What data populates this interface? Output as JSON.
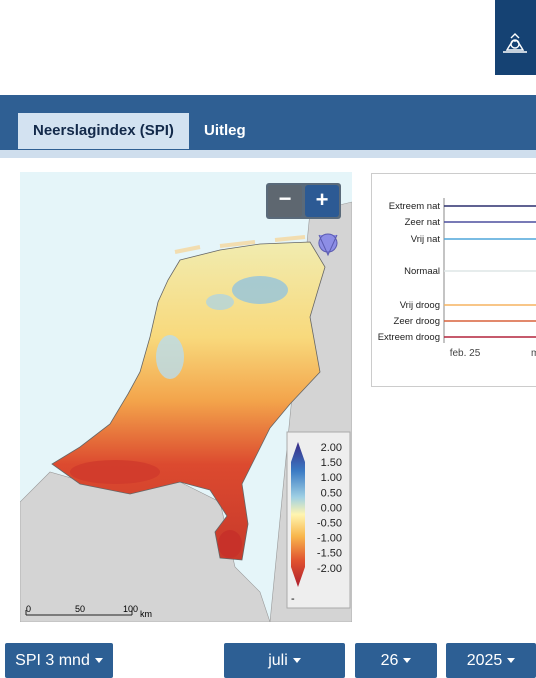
{
  "tabs": [
    {
      "label": "Neerslagindex (SPI)",
      "active": true
    },
    {
      "label": "Uitleg",
      "active": false
    }
  ],
  "map": {
    "zoom_out": "−",
    "zoom_in": "+",
    "legend": {
      "ticks": [
        "2.00",
        "1.50",
        "1.00",
        "0.50",
        "0.00",
        "-0.50",
        "-1.00",
        "-1.50",
        "-2.00"
      ],
      "missing": "-"
    },
    "scale": {
      "ticks": [
        "0",
        "50",
        "100"
      ],
      "unit": "km"
    }
  },
  "chart": {
    "levels": [
      {
        "label": "Extreem nat",
        "color": "#2c2f6e"
      },
      {
        "label": "Zeer nat",
        "color": "#4b4f9e"
      },
      {
        "label": "Vrij nat",
        "color": "#4fa6da"
      },
      {
        "label": "Normaal",
        "color": "#dde6e6"
      },
      {
        "label": "Vrij droog",
        "color": "#f6b461"
      },
      {
        "label": "Zeer droog",
        "color": "#d9623b"
      },
      {
        "label": "Extreem droog",
        "color": "#b3243b"
      }
    ],
    "x_ticks": [
      "feb. 25",
      "m"
    ]
  },
  "controls": [
    {
      "label": "SPI 3 mnd"
    },
    {
      "label": "juli"
    },
    {
      "label": "26"
    },
    {
      "label": "2025"
    }
  ]
}
